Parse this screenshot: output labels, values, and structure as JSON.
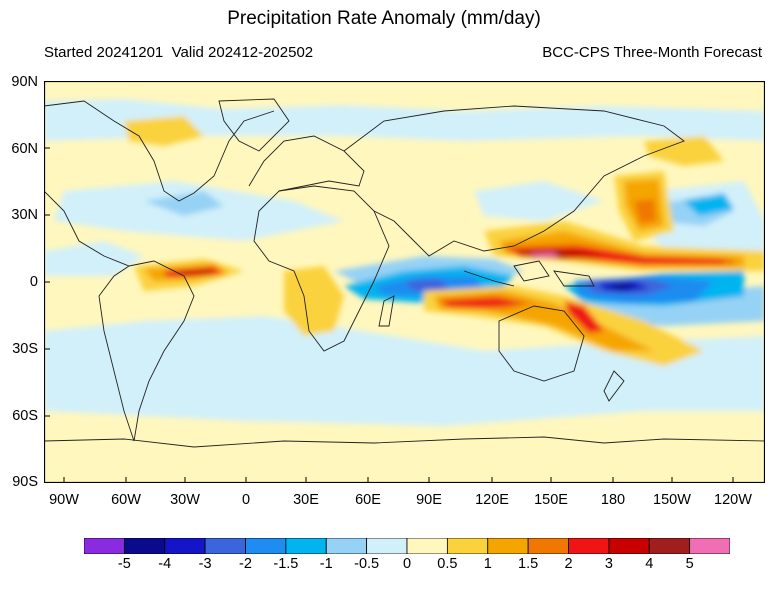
{
  "header": {
    "title": "Precipitation Rate Anomaly (mm/day)",
    "started": "Started 20241201",
    "valid": "Valid 202412-202502",
    "model": "BCC-CPS Three-Month Forecast"
  },
  "map": {
    "lat_labels": [
      "90N",
      "60N",
      "30N",
      "0",
      "30S",
      "60S",
      "90S"
    ],
    "lon_labels": [
      "90W",
      "60W",
      "30W",
      "0",
      "30E",
      "60E",
      "90E",
      "120E",
      "150E",
      "180",
      "150W",
      "120W"
    ],
    "lon_range": [
      -110,
      240
    ],
    "lat_range": [
      -90,
      90
    ],
    "background_color": "#fff7bd"
  },
  "colorbar": {
    "labels": [
      "-5",
      "-4",
      "-3",
      "-2",
      "-1.5",
      "-1",
      "-0.5",
      "0",
      "0.5",
      "1",
      "1.5",
      "2",
      "3",
      "4",
      "5"
    ],
    "colors": [
      "#8a2be2",
      "#0a0a8c",
      "#1414c8",
      "#3c64dc",
      "#1e8cf0",
      "#00b4f0",
      "#96d2f5",
      "#d2f0fa",
      "#fff7bd",
      "#fad23c",
      "#f5a500",
      "#f07800",
      "#f01414",
      "#c80000",
      "#a01e1e",
      "#f06eb4"
    ]
  }
}
